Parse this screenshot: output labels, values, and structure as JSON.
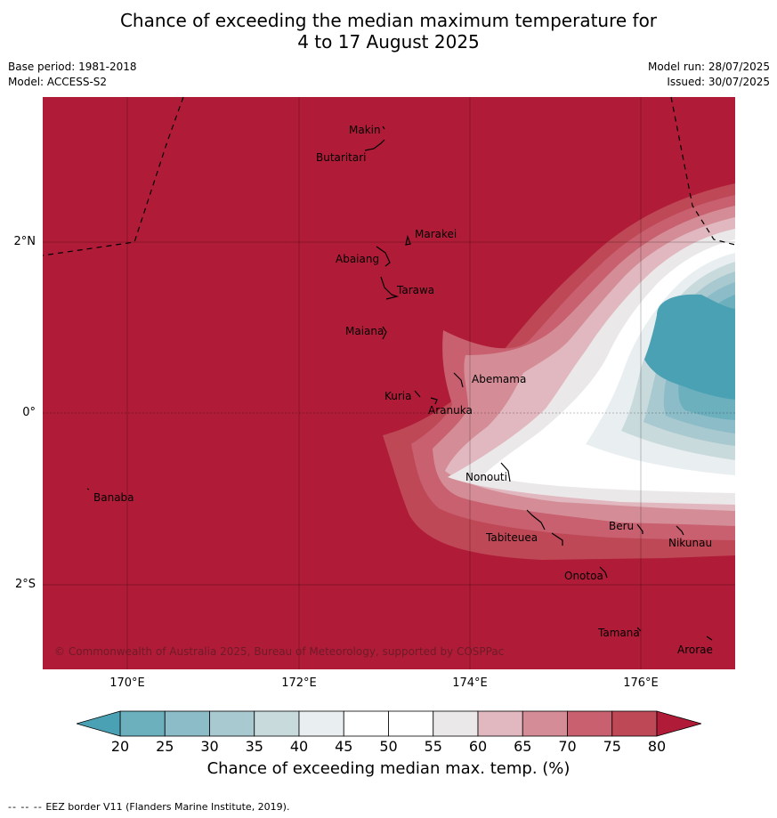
{
  "title": {
    "line1": "Chance of exceeding the median maximum temperature for",
    "line2": "4 to 17 August 2025"
  },
  "meta": {
    "base_period": "Base period: 1981-2018",
    "model": "Model: ACCESS-S2",
    "model_run": "Model run: 28/07/2025",
    "issued": "Issued: 30/07/2025"
  },
  "map": {
    "background_color": "#b01c38",
    "lat_labels": [
      "2°N",
      "0°",
      "2°S"
    ],
    "lon_labels": [
      "170°E",
      "172°E",
      "174°E",
      "176°E"
    ],
    "places": [
      "Makin",
      "Butaritari",
      "Marakei",
      "Abaiang",
      "Tarawa",
      "Maiana",
      "Abemama",
      "Kuria",
      "Aranuka",
      "Nonouti",
      "Banaba",
      "Beru",
      "Nikunau",
      "Tabiteuea",
      "Onotoa",
      "Tamana",
      "Arorae"
    ],
    "copyright": "© Commonwealth of Australia 2025, Bureau of Meteorology, supported by COSPPac"
  },
  "colorbar": {
    "labels": [
      "20",
      "25",
      "30",
      "35",
      "40",
      "45",
      "50",
      "55",
      "60",
      "65",
      "70",
      "75",
      "80"
    ],
    "colors": [
      "#4aa1b3",
      "#6cb0be",
      "#8bbcc7",
      "#a8c9cf",
      "#c9dadd",
      "#e9eff1",
      "#ffffff",
      "#ffffff",
      "#ebe8ea",
      "#e1b8bf",
      "#d48d97",
      "#c8606f",
      "#bf4856",
      "#b01c38"
    ],
    "title": "Chance of exceeding median max. temp. (%)"
  },
  "footnote": {
    "dashes": "-- -- --",
    "text": "EEZ border V11 (Flanders Marine Institute, 2019)."
  }
}
